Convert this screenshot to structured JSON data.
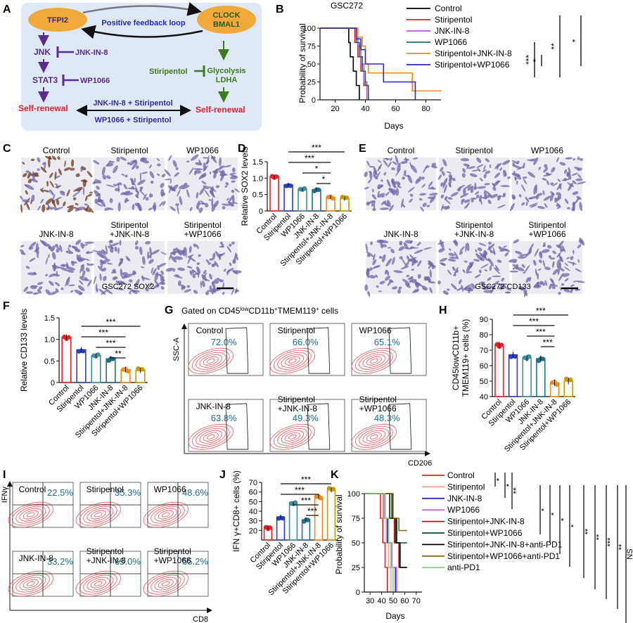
{
  "panel_letters": [
    "A",
    "B",
    "C",
    "D",
    "E",
    "F",
    "G",
    "H",
    "I",
    "J",
    "K"
  ],
  "treatments": [
    "Control",
    "Stiripentol",
    "WP1066",
    "JNK-IN-8",
    "Stiripentol+JNK-IN-8",
    "Stiripentol+WP1066"
  ],
  "treatment_colors": [
    "#e8202a",
    "#2b3fbf",
    "#3e8f9e",
    "#1f6e8c",
    "#f08a1a",
    "#c49a00"
  ],
  "panelA": {
    "tfpi2": "TFPI2",
    "clock": "CLOCK",
    "bmal1": "BMAL1",
    "loop": "Positive feedback loop",
    "jnk": "JNK",
    "jnk_inh": "JNK-IN-8",
    "stat3": "STAT3",
    "wp": "WP1066",
    "self_renewal": "Self-renewal",
    "stiri": "Stiripentol",
    "glyco1": "Glycolysis",
    "glyco2": "LDHA",
    "combo1": "JNK-IN-8 + Stiripentol",
    "combo2": "WP1066 + Stiripentol",
    "colors": {
      "purple": "#5b2d90",
      "green": "#3f7a1f",
      "red": "#e8202a",
      "node": "#f2a93b",
      "box": "#dfe9f5"
    }
  },
  "panelB": {
    "title": "GSC272",
    "xlabel": "Days",
    "ylabel": "Probability of survival",
    "x_ticks": [
      "20",
      "40",
      "60",
      "80"
    ],
    "y_ticks": [
      "0",
      "25",
      "50",
      "75",
      "100"
    ],
    "legend": [
      "Control",
      "Stiripentol",
      "JNK-IN-8",
      "WP1066",
      "Stiripentol+JNK-IN-8",
      "Stiripentol+WP1066"
    ],
    "colors": [
      "#000000",
      "#e8202a",
      "#b05ad6",
      "#1a6b5a",
      "#f08a1a",
      "#2b2bbd"
    ],
    "sig": [
      "***",
      "*",
      "**",
      "*"
    ]
  },
  "panelC": {
    "labels": [
      "Control",
      "Stiripentol",
      "WP1066",
      "JNK-IN-8",
      "Stiripentol\n+JNK-IN-8",
      "Stiripentol\n+WP1066"
    ],
    "caption": "GSC272 SOX2"
  },
  "panelE": {
    "labels": [
      "Control",
      "Stiripentol",
      "WP1066",
      "JNK-IN-8",
      "Stiripentol\n+JNK-IN-8",
      "Stiripentol\n+WP1066"
    ],
    "caption": "GSC272 CD133"
  },
  "panelG": {
    "title": "Gated on CD45lowCD11b+TMEM119+ cells",
    "labels": [
      "Control",
      "Stiripentol",
      "WP1066",
      "JNK-IN-8",
      "Stiripentol\n+JNK-IN-8",
      "Stiripentol\n+WP1066"
    ],
    "values": [
      "72.0%",
      "66.0%",
      "65.1%",
      "63.8%",
      "49.3%",
      "48.3%"
    ],
    "xlabel": "CD206",
    "ylabel": "SSC-A"
  },
  "panelI": {
    "labels": [
      "Control",
      "Stiripentol",
      "WP1066",
      "JNK-IN-8",
      "Stiripentol\n+JNK-IN-8",
      "Stiripentol\n+WP1066"
    ],
    "values": [
      "22.5%",
      "35.3%",
      "48.6%",
      "33.2%",
      "65.0%",
      "55.2%"
    ],
    "xlabel": "CD8",
    "ylabel": "IFNγ"
  },
  "panelK": {
    "xlabel": "Days",
    "ylabel": "Probability of survival",
    "x_ticks": [
      "30",
      "40",
      "50",
      "60",
      "70"
    ],
    "y_ticks": [
      "0",
      "25",
      "50",
      "75",
      "100"
    ],
    "legend": [
      "Control",
      "Stiripentol",
      "JNK-IN-8",
      "WP1066",
      "Stiripentol+JNK-IN-8",
      "Stiripentol+WP1066",
      "Stiripentol+JNK-IN-8+anti-PD1",
      "Stiripentol+WP1066+anti-PD1",
      "anti-PD1"
    ],
    "colors": [
      "#e8202a",
      "#f5a37a",
      "#2b2bbd",
      "#c46ad8",
      "#b5161e",
      "#0b4a2a",
      "#000000",
      "#8a6b12",
      "#7fd97f"
    ],
    "sig_left": [
      "*",
      "*",
      "**"
    ],
    "sig_right": [
      "*",
      "*",
      "*",
      "*",
      "**",
      "**",
      "***",
      "**",
      "NS"
    ]
  },
  "chart_data": [
    {
      "panel": "D",
      "type": "bar",
      "ylabel": "Relative SOX2 levels",
      "categories": [
        "Control",
        "Stiripentol",
        "WP1066",
        "JNK-IN-8",
        "Stiripentol+JNK-IN-8",
        "Stiripentol+WP1066"
      ],
      "values": [
        1.05,
        0.8,
        0.66,
        0.65,
        0.42,
        0.38
      ],
      "ylim": [
        0,
        1.5
      ],
      "yticks": [
        "0",
        "0.5",
        "1.0",
        "1.5"
      ],
      "sig": [
        "***",
        "***",
        "*",
        "*"
      ]
    },
    {
      "panel": "F",
      "type": "bar",
      "ylabel": "Relative CD133 levels",
      "categories": [
        "Control",
        "Stiripentol",
        "WP1066",
        "JNK-IN-8",
        "Stiripentol+JNK-IN-8",
        "Stiripentol+WP1066"
      ],
      "values": [
        1.05,
        0.76,
        0.62,
        0.55,
        0.3,
        0.28
      ],
      "ylim": [
        0,
        1.5
      ],
      "yticks": [
        "0",
        "0.5",
        "1.0",
        "1.5"
      ],
      "sig": [
        "***",
        "***",
        "***",
        "**"
      ]
    },
    {
      "panel": "H",
      "type": "bar",
      "ylabel": "CD45lowCD11b+ TMEM119+ cells (%)",
      "categories": [
        "Control",
        "Stiripentol",
        "WP1066",
        "JNK-IN-8",
        "Stiripentol+JNK-IN-8",
        "Stiripentol+WP1066"
      ],
      "values": [
        73.5,
        67,
        65,
        64.5,
        49,
        50
      ],
      "ylim": [
        40,
        90
      ],
      "yticks": [
        "40",
        "50",
        "60",
        "70",
        "80",
        "90"
      ],
      "sig": [
        "***",
        "***",
        "***",
        "***"
      ]
    },
    {
      "panel": "J",
      "type": "bar",
      "ylabel": "IFN γ+CD8+ cells (%)",
      "categories": [
        "Control",
        "Stiripentol",
        "WP1066",
        "JNK-IN-8",
        "Stiripentol+JNK-IN-8",
        "Stiripentol+WP1066"
      ],
      "values": [
        23,
        34,
        48,
        31,
        55,
        62
      ],
      "ylim": [
        10,
        70
      ],
      "yticks": [
        "20",
        "30",
        "40",
        "50",
        "60",
        "70"
      ],
      "sig": [
        "***",
        "***",
        "***",
        "***"
      ]
    },
    {
      "panel": "B",
      "type": "line",
      "title": "GSC272",
      "xlabel": "Days",
      "ylabel": "Probability of survival",
      "xlim": [
        10,
        90
      ],
      "ylim": [
        0,
        100
      ],
      "series": [
        {
          "name": "Control",
          "x": [
            10,
            27,
            29,
            30,
            32,
            34,
            36
          ],
          "y": [
            100,
            100,
            80,
            60,
            40,
            20,
            0
          ]
        },
        {
          "name": "Stiripentol",
          "x": [
            10,
            30,
            33,
            35,
            37,
            39,
            41
          ],
          "y": [
            100,
            100,
            80,
            60,
            40,
            20,
            0
          ]
        },
        {
          "name": "JNK-IN-8",
          "x": [
            10,
            31,
            35,
            37,
            39,
            41
          ],
          "y": [
            100,
            100,
            75,
            50,
            25,
            0
          ]
        },
        {
          "name": "WP1066",
          "x": [
            10,
            30,
            34,
            36,
            38,
            40,
            42
          ],
          "y": [
            100,
            100,
            80,
            60,
            40,
            20,
            0
          ]
        },
        {
          "name": "Stiripentol+JNK-IN-8",
          "x": [
            10,
            32,
            35,
            38,
            40,
            42,
            50,
            71,
            90
          ],
          "y": [
            100,
            100,
            87.5,
            75,
            50,
            37.5,
            37.5,
            12.5,
            12.5
          ]
        },
        {
          "name": "Stiripentol+WP1066",
          "x": [
            10,
            31,
            34,
            37,
            40,
            52,
            73
          ],
          "y": [
            100,
            100,
            85,
            70,
            50,
            25,
            0
          ]
        }
      ]
    },
    {
      "panel": "K",
      "type": "line",
      "xlabel": "Days",
      "ylabel": "Probability of survival",
      "xlim": [
        25,
        75
      ],
      "ylim": [
        0,
        100
      ],
      "series": [
        {
          "name": "Control",
          "x": [
            25,
            36,
            39,
            41,
            43,
            45
          ],
          "y": [
            100,
            100,
            75,
            50,
            25,
            0
          ]
        },
        {
          "name": "Stiripentol",
          "x": [
            25,
            38,
            41,
            44,
            46,
            48
          ],
          "y": [
            100,
            100,
            75,
            50,
            25,
            0
          ]
        },
        {
          "name": "JNK-IN-8",
          "x": [
            25,
            40,
            43,
            45,
            48,
            52
          ],
          "y": [
            100,
            100,
            75,
            50,
            25,
            0
          ]
        },
        {
          "name": "WP1066",
          "x": [
            25,
            40,
            42,
            46,
            49,
            53
          ],
          "y": [
            100,
            100,
            75,
            50,
            25,
            0
          ]
        },
        {
          "name": "Stiripentol+JNK-IN-8",
          "x": [
            25,
            43,
            47,
            51,
            55,
            62
          ],
          "y": [
            100,
            100,
            75,
            50,
            25,
            25
          ]
        },
        {
          "name": "Stiripentol+WP1066",
          "x": [
            25,
            44,
            47,
            52,
            57,
            62
          ],
          "y": [
            100,
            100,
            75,
            50,
            50,
            50
          ]
        },
        {
          "name": "Stiripentol+JNK-IN-8+anti-PD1",
          "x": [
            25,
            45,
            49,
            53,
            56,
            62
          ],
          "y": [
            100,
            100,
            75,
            50,
            25,
            25
          ]
        },
        {
          "name": "Stiripentol+WP1066+anti-PD1",
          "x": [
            25,
            46,
            50,
            55,
            62
          ],
          "y": [
            100,
            100,
            75,
            62.5,
            62.5
          ]
        },
        {
          "name": "anti-PD1",
          "x": [
            25,
            41,
            43,
            46,
            48,
            50
          ],
          "y": [
            100,
            100,
            75,
            50,
            25,
            0
          ]
        }
      ]
    }
  ]
}
